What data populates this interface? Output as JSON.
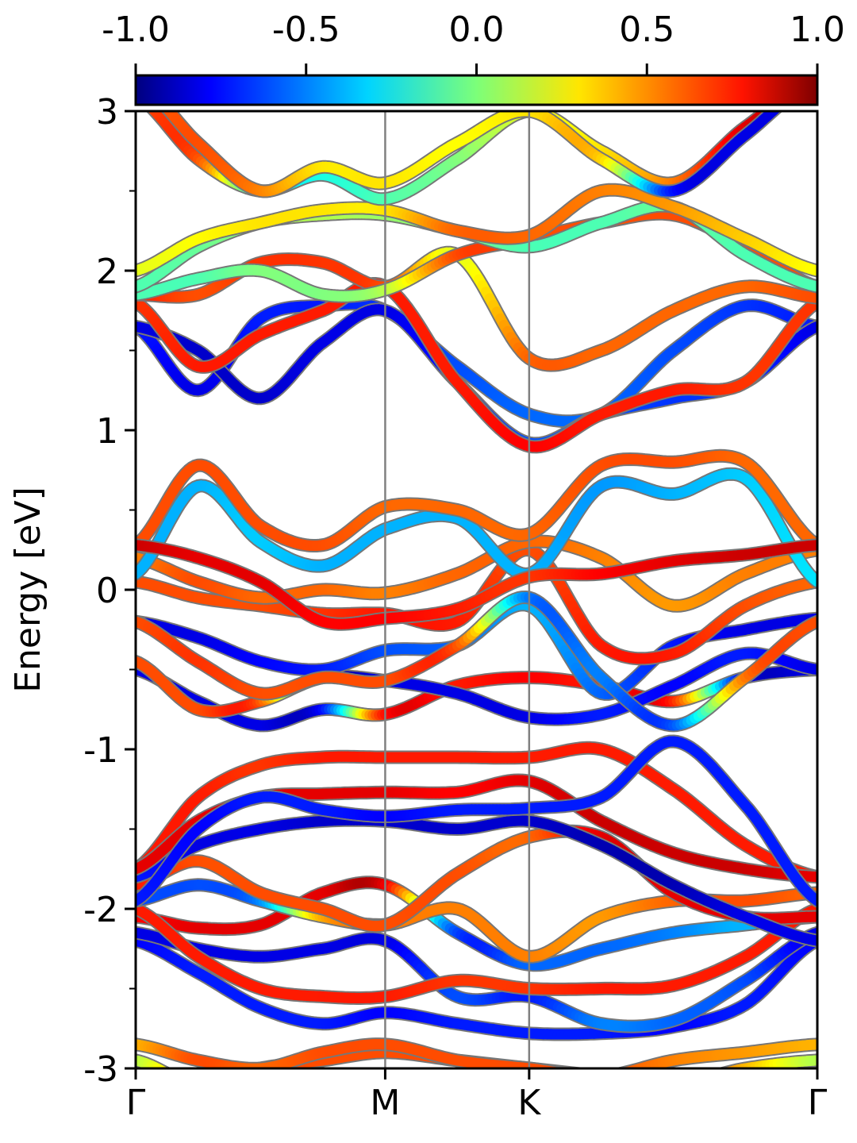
{
  "chart_data": {
    "type": "line",
    "subtype": "electronic band structure colored by projection weight",
    "ylabel": "Energy [eV]",
    "xlabel": "",
    "ylim": [
      -3,
      3
    ],
    "yticks": [
      -3,
      -2,
      -1,
      0,
      1,
      2,
      3
    ],
    "ytick_labels": [
      "-3",
      "-2",
      "-1",
      "0",
      "1",
      "2",
      "3"
    ],
    "k_path": [
      "Γ",
      "M",
      "K",
      "Γ"
    ],
    "k_positions": [
      0,
      1,
      1.577,
      2.732
    ],
    "k_vertical_lines": [
      "M",
      "K"
    ],
    "grid": false,
    "colorbar": {
      "position": "top",
      "colormap": "jet",
      "range": [
        -1.0,
        1.0
      ],
      "ticks": [
        -1.0,
        -0.5,
        0.0,
        0.5,
        1.0
      ],
      "tick_labels": [
        "-1.0",
        "-0.5",
        "0.0",
        "0.5",
        "1.0"
      ]
    },
    "bands_note": "approximate band energies read from the figure at k-points (0, 0.25, 0.5, 0.75, 1, 1.289, 1.577, 1.866, 2.155, 2.443, 2.732); each point carries a projection weight w in [-1, 1]",
    "bands_k": [
      0,
      0.25,
      0.5,
      0.75,
      1,
      1.289,
      1.577,
      1.866,
      2.155,
      2.443,
      2.732
    ],
    "bands": [
      {
        "y": [
          -2.95,
          -3.1,
          -3.0,
          -2.95,
          -2.9,
          -2.95,
          -3.0,
          -3.05,
          -3.1,
          -3.0,
          -2.95
        ],
        "w": [
          0.1,
          0.5,
          0.6,
          0.6,
          0.6,
          0.6,
          0.55,
          0.6,
          0.6,
          0.4,
          0.1
        ]
      },
      {
        "y": [
          -2.85,
          -2.95,
          -3.0,
          -2.9,
          -2.85,
          -2.95,
          -3.0,
          -3.05,
          -2.95,
          -2.9,
          -2.85
        ],
        "w": [
          0.4,
          0.6,
          0.55,
          0.6,
          0.6,
          0.6,
          0.6,
          0.6,
          0.5,
          0.45,
          0.4
        ]
      },
      {
        "y": [
          -2.2,
          -2.4,
          -2.62,
          -2.72,
          -2.65,
          -2.72,
          -2.78,
          -2.78,
          -2.74,
          -2.6,
          -2.2
        ],
        "w": [
          -0.75,
          -0.7,
          -0.7,
          -0.7,
          -0.75,
          -0.7,
          -0.7,
          -0.7,
          -0.75,
          -0.7,
          -0.75
        ]
      },
      {
        "y": [
          -2.15,
          -2.25,
          -2.3,
          -2.25,
          -2.2,
          -2.55,
          -2.55,
          -2.72,
          -2.7,
          -2.45,
          -2.15
        ],
        "w": [
          -0.8,
          -0.8,
          -0.8,
          -0.8,
          -0.8,
          -0.6,
          -0.7,
          -0.5,
          -0.55,
          -0.6,
          -0.8
        ]
      },
      {
        "y": [
          -2.05,
          -2.12,
          -2.1,
          -1.9,
          -1.85,
          -2.15,
          -2.35,
          -2.25,
          -2.15,
          -2.1,
          -2.05
        ],
        "w": [
          0.75,
          0.8,
          0.8,
          0.8,
          0.8,
          -0.6,
          -0.55,
          -0.55,
          -0.5,
          -0.4,
          -0.5
        ]
      },
      {
        "y": [
          -2.0,
          -2.3,
          -2.5,
          -2.55,
          -2.55,
          -2.45,
          -2.5,
          -2.5,
          -2.48,
          -2.3,
          -2.0
        ],
        "w": [
          0.7,
          0.7,
          0.7,
          0.7,
          0.7,
          0.65,
          0.65,
          0.7,
          0.7,
          0.7,
          0.7
        ]
      },
      {
        "y": [
          -1.95,
          -1.85,
          -1.95,
          -2.05,
          -2.1,
          -2.0,
          -2.3,
          -2.05,
          -1.95,
          -1.95,
          -1.9
        ],
        "w": [
          -0.6,
          -0.6,
          -0.5,
          0.4,
          0.5,
          0.5,
          0.5,
          0.45,
          0.55,
          0.6,
          0.55
        ]
      },
      {
        "y": [
          -1.85,
          -1.7,
          -1.9,
          -2.0,
          -2.1,
          -1.78,
          -1.55,
          -1.55,
          -1.9,
          -2.05,
          -2.05
        ],
        "w": [
          0.7,
          0.6,
          0.6,
          0.6,
          0.6,
          0.6,
          0.55,
          0.8,
          0.8,
          0.8,
          0.8
        ]
      },
      {
        "y": [
          -1.8,
          -1.6,
          -1.5,
          -1.45,
          -1.45,
          -1.5,
          -1.45,
          -1.6,
          -1.85,
          -2.05,
          -2.2
        ],
        "w": [
          -0.7,
          -0.8,
          -0.8,
          -0.85,
          -0.85,
          -0.85,
          -0.85,
          -0.9,
          -0.9,
          -0.8,
          -0.8
        ]
      },
      {
        "y": [
          -1.75,
          -1.3,
          -1.1,
          -1.05,
          -1.05,
          -1.05,
          -1.05,
          -1.0,
          -1.25,
          -1.6,
          -1.8
        ],
        "w": [
          0.7,
          0.7,
          0.65,
          0.7,
          0.7,
          0.7,
          0.7,
          0.7,
          0.7,
          0.7,
          0.7
        ]
      },
      {
        "y": [
          -1.75,
          -1.45,
          -1.3,
          -1.28,
          -1.27,
          -1.27,
          -1.2,
          -1.45,
          -1.65,
          -1.75,
          -1.8
        ],
        "w": [
          0.8,
          0.8,
          0.8,
          0.8,
          0.8,
          0.75,
          0.8,
          0.85,
          0.85,
          0.85,
          0.8
        ]
      },
      {
        "y": [
          -1.95,
          -1.5,
          -1.3,
          -1.38,
          -1.42,
          -1.38,
          -1.37,
          -1.3,
          -0.95,
          -1.35,
          -1.95
        ],
        "w": [
          -0.7,
          -0.75,
          -0.7,
          -0.7,
          -0.75,
          -0.7,
          -0.7,
          -0.7,
          -0.7,
          -0.7,
          -0.7
        ]
      },
      {
        "y": [
          -0.5,
          -0.7,
          -0.85,
          -0.75,
          -0.78,
          -0.6,
          -0.55,
          -0.6,
          -0.7,
          -0.55,
          -0.5
        ],
        "w": [
          -0.8,
          -0.8,
          -0.8,
          -0.75,
          0.7,
          0.7,
          0.75,
          0.7,
          0.7,
          -0.75,
          -0.8
        ]
      },
      {
        "y": [
          -0.45,
          -0.75,
          -0.7,
          -0.55,
          -0.57,
          -0.65,
          -0.8,
          -0.78,
          -0.6,
          -0.4,
          -0.5
        ],
        "w": [
          0.6,
          0.6,
          0.6,
          -0.8,
          -0.8,
          -0.8,
          -0.8,
          -0.7,
          -0.75,
          -0.7,
          -0.8
        ]
      },
      {
        "y": [
          -0.2,
          -0.3,
          -0.45,
          -0.5,
          -0.38,
          -0.35,
          -0.1,
          -0.65,
          -0.35,
          -0.25,
          -0.18
        ],
        "w": [
          -0.8,
          -0.8,
          -0.75,
          -0.7,
          -0.6,
          -0.55,
          -0.4,
          -0.55,
          -0.7,
          -0.8,
          -0.8
        ]
      },
      {
        "y": [
          -0.2,
          -0.45,
          -0.65,
          -0.55,
          -0.57,
          -0.35,
          -0.05,
          -0.55,
          -0.85,
          -0.55,
          -0.2
        ],
        "w": [
          0.6,
          0.65,
          0.6,
          0.6,
          0.6,
          0.6,
          -0.5,
          -0.5,
          -0.6,
          0.5,
          0.6
        ]
      },
      {
        "y": [
          0.05,
          -0.05,
          -0.1,
          -0.15,
          -0.15,
          -0.2,
          0.25,
          -0.35,
          -0.4,
          -0.1,
          0.05
        ],
        "w": [
          0.6,
          0.6,
          0.6,
          0.65,
          0.7,
          0.7,
          0.6,
          0.7,
          0.7,
          0.6,
          0.55
        ]
      },
      {
        "y": [
          0.2,
          0.05,
          -0.05,
          0.0,
          -0.02,
          0.1,
          0.3,
          0.2,
          -0.1,
          0.1,
          0.25
        ],
        "w": [
          0.5,
          0.6,
          0.55,
          0.55,
          0.5,
          0.55,
          0.55,
          0.5,
          0.45,
          0.5,
          0.5
        ]
      },
      {
        "y": [
          0.1,
          0.65,
          0.3,
          0.15,
          0.38,
          0.45,
          0.1,
          0.65,
          0.6,
          0.7,
          0.05
        ],
        "w": [
          -0.4,
          -0.4,
          -0.35,
          -0.4,
          -0.4,
          -0.4,
          -0.4,
          -0.45,
          -0.4,
          -0.35,
          -0.3
        ]
      },
      {
        "y": [
          0.28,
          0.78,
          0.4,
          0.28,
          0.52,
          0.5,
          0.35,
          0.78,
          0.8,
          0.8,
          0.28
        ],
        "w": [
          0.6,
          0.6,
          0.6,
          0.6,
          0.55,
          0.55,
          0.55,
          0.6,
          0.6,
          0.55,
          0.55
        ]
      },
      {
        "y": [
          0.28,
          0.2,
          0.05,
          -0.2,
          -0.18,
          -0.12,
          0.08,
          0.1,
          0.18,
          0.22,
          0.28
        ],
        "w": [
          0.85,
          0.8,
          0.8,
          0.75,
          0.75,
          0.7,
          0.65,
          0.75,
          0.8,
          0.85,
          0.85
        ]
      },
      {
        "y": [
          1.65,
          1.25,
          1.7,
          1.78,
          1.75,
          1.4,
          1.1,
          1.1,
          1.5,
          1.78,
          1.65
        ],
        "w": [
          -0.7,
          -0.8,
          -0.7,
          -0.7,
          -0.65,
          -0.6,
          -0.55,
          -0.55,
          -0.6,
          -0.65,
          -0.7
        ]
      },
      {
        "y": [
          1.65,
          1.5,
          1.2,
          1.55,
          1.75,
          1.3,
          0.92,
          1.1,
          1.2,
          1.3,
          1.65
        ],
        "w": [
          -0.8,
          -0.85,
          -0.85,
          -0.8,
          -0.8,
          -0.7,
          -0.6,
          -0.6,
          -0.65,
          -0.65,
          -0.8
        ]
      },
      {
        "y": [
          1.8,
          1.4,
          1.6,
          1.75,
          1.9,
          1.3,
          0.9,
          1.1,
          1.25,
          1.3,
          1.8
        ],
        "w": [
          0.65,
          0.7,
          0.7,
          0.7,
          0.7,
          0.7,
          0.75,
          0.7,
          0.7,
          0.65,
          0.65
        ]
      },
      {
        "y": [
          1.85,
          1.85,
          2.05,
          2.05,
          1.9,
          2.1,
          1.45,
          1.5,
          1.75,
          1.9,
          1.83
        ],
        "w": [
          0.7,
          0.6,
          0.65,
          0.65,
          0.6,
          0.2,
          0.55,
          0.55,
          0.55,
          0.55,
          0.6
        ]
      },
      {
        "y": [
          1.85,
          1.95,
          2.0,
          1.85,
          1.88,
          2.1,
          2.2,
          2.3,
          2.35,
          2.15,
          1.9
        ],
        "w": [
          -0.1,
          -0.1,
          0.0,
          0.0,
          0.1,
          0.6,
          0.6,
          0.6,
          0.6,
          0.6,
          0.6
        ]
      },
      {
        "y": [
          1.9,
          2.15,
          2.3,
          2.35,
          2.35,
          2.25,
          2.15,
          2.3,
          2.4,
          2.1,
          1.9
        ],
        "w": [
          -0.1,
          -0.05,
          0.05,
          0.1,
          0.05,
          0.0,
          -0.1,
          -0.1,
          -0.05,
          -0.1,
          -0.1
        ]
      },
      {
        "y": [
          2.0,
          2.2,
          2.3,
          2.38,
          2.38,
          2.25,
          2.22,
          2.5,
          2.4,
          2.2,
          2.0
        ],
        "w": [
          0.2,
          0.25,
          0.3,
          0.3,
          0.3,
          0.55,
          0.55,
          0.5,
          0.45,
          0.35,
          0.25
        ]
      },
      {
        "y": [
          3.1,
          2.7,
          2.5,
          2.6,
          2.45,
          2.7,
          3.0,
          2.75,
          2.55,
          2.9,
          3.2
        ],
        "w": [
          0.6,
          0.6,
          -0.2,
          -0.2,
          -0.1,
          0.0,
          0.2,
          0.3,
          0.5,
          0.8,
          0.85
        ]
      },
      {
        "y": [
          3.2,
          2.8,
          2.5,
          2.65,
          2.55,
          2.8,
          3.0,
          2.7,
          2.5,
          2.85,
          3.2
        ],
        "w": [
          0.55,
          0.6,
          0.5,
          0.3,
          0.3,
          0.25,
          0.3,
          0.35,
          -0.7,
          -0.8,
          -0.8
        ]
      }
    ]
  }
}
